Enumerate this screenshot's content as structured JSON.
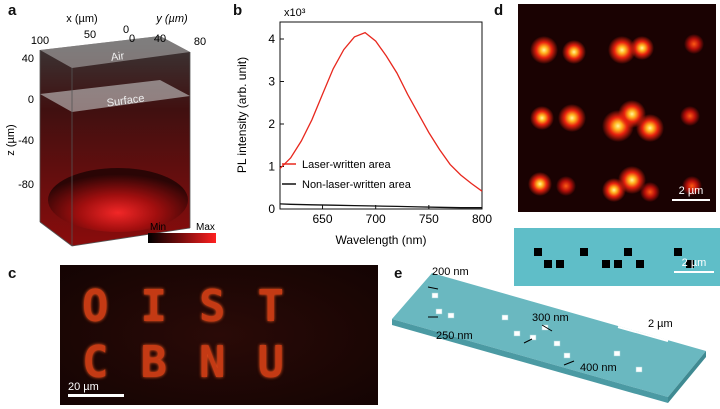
{
  "panels": {
    "a": "a",
    "b": "b",
    "c": "c",
    "d": "d",
    "e": "e"
  },
  "panel_a": {
    "x_axis_label": "x (µm)",
    "y_axis_label": "y (µm)",
    "z_axis_label": "z (µm)",
    "x_ticks": [
      "100",
      "50",
      "0"
    ],
    "y_ticks": [
      "0",
      "40",
      "80"
    ],
    "z_ticks": [
      "40",
      "0",
      "-40",
      "-80"
    ],
    "air_label": "Air",
    "surface_label": "Surface",
    "colorbar_min": "Min",
    "colorbar_max": "Max"
  },
  "chart_data": {
    "type": "line",
    "title": "",
    "exponent_label": "x10³",
    "xlabel": "Wavelength (nm)",
    "ylabel": "PL intensity (arb. unit)",
    "xlim": [
      610,
      800
    ],
    "ylim": [
      0,
      4.4
    ],
    "x_ticks": [
      650,
      700,
      750,
      800
    ],
    "y_ticks": [
      0,
      1,
      2,
      3,
      4
    ],
    "legend_position": "center-right",
    "series": [
      {
        "name": "Laser-written area",
        "color": "#e8281e",
        "x": [
          610,
          620,
          630,
          640,
          650,
          660,
          670,
          680,
          690,
          700,
          710,
          720,
          730,
          740,
          750,
          760,
          770,
          780,
          790,
          800
        ],
        "values": [
          0.95,
          1.2,
          1.6,
          2.1,
          2.7,
          3.3,
          3.75,
          4.05,
          4.15,
          3.95,
          3.6,
          3.2,
          2.7,
          2.25,
          1.8,
          1.4,
          1.05,
          0.8,
          0.6,
          0.42
        ]
      },
      {
        "name": "Non-laser-written area",
        "color": "#111111",
        "x": [
          610,
          620,
          640,
          660,
          680,
          700,
          720,
          740,
          760,
          780,
          800
        ],
        "values": [
          0.12,
          0.11,
          0.1,
          0.09,
          0.08,
          0.07,
          0.06,
          0.05,
          0.04,
          0.03,
          0.03
        ]
      }
    ]
  },
  "panel_c": {
    "text_row1": "OIST",
    "text_row2": "CBNU",
    "scale_bar": "20 µm"
  },
  "panel_d": {
    "scale_bar_top": "2 µm",
    "scale_bar_bottom": "2 µm"
  },
  "panel_e": {
    "label_200": "200 nm",
    "label_250": "250 nm",
    "label_300": "300 nm",
    "label_400": "400 nm",
    "scale_bar": "2 µm"
  },
  "colors": {
    "chip": "#5fbec8",
    "plot_red": "#e8281e"
  }
}
